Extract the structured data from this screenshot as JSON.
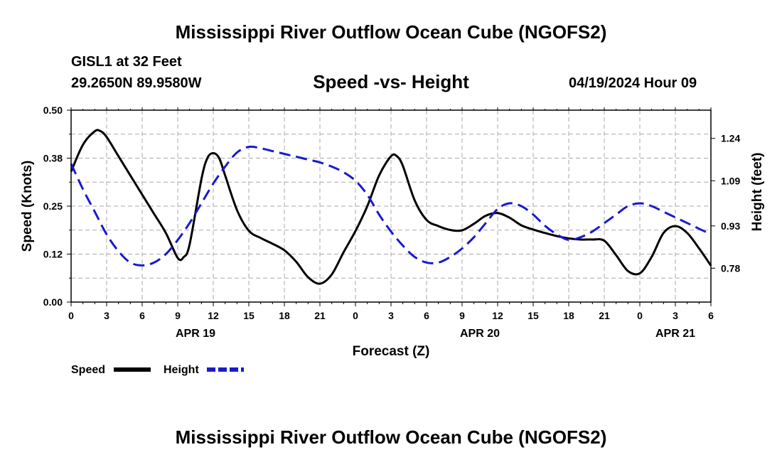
{
  "header": {
    "title": "Mississippi River Outflow Ocean Cube (NGOFS2)",
    "station": "GISL1 at 32 Feet",
    "coords": "29.2650N  89.9580W",
    "subtitle": "Speed -vs- Height",
    "datetime": "04/19/2024 Hour 09"
  },
  "footer": {
    "title": "Mississippi River Outflow Ocean Cube (NGOFS2)"
  },
  "colors": {
    "speed": "#000000",
    "height": "#1a1acc",
    "grid": "#aaaaaa"
  },
  "chart_data": {
    "type": "line",
    "xlabel": "Forecast (Z)",
    "ylabel_left": "Speed (Knots)",
    "ylabel_right": "Height (feet)",
    "x_range_hours": [
      0,
      54
    ],
    "x_ticks": [
      {
        "h": 0,
        "label": "0"
      },
      {
        "h": 3,
        "label": "3"
      },
      {
        "h": 6,
        "label": "6"
      },
      {
        "h": 9,
        "label": "9"
      },
      {
        "h": 12,
        "label": "12"
      },
      {
        "h": 15,
        "label": "15"
      },
      {
        "h": 18,
        "label": "18"
      },
      {
        "h": 21,
        "label": "21"
      },
      {
        "h": 24,
        "label": "0"
      },
      {
        "h": 27,
        "label": "3"
      },
      {
        "h": 30,
        "label": "6"
      },
      {
        "h": 33,
        "label": "9"
      },
      {
        "h": 36,
        "label": "12"
      },
      {
        "h": 39,
        "label": "15"
      },
      {
        "h": 42,
        "label": "18"
      },
      {
        "h": 45,
        "label": "21"
      },
      {
        "h": 48,
        "label": "0"
      },
      {
        "h": 51,
        "label": "3"
      },
      {
        "h": 54,
        "label": "6"
      }
    ],
    "date_labels": [
      {
        "h": 10.5,
        "label": "APR 19"
      },
      {
        "h": 34.5,
        "label": "APR 20"
      },
      {
        "h": 51,
        "label": "APR 21"
      }
    ],
    "ylim_left": [
      0,
      0.5
    ],
    "yticks_left": [
      "0.00",
      "0.12",
      "0.25",
      "0.38",
      "0.50"
    ],
    "ylim_right": [
      0.66,
      1.34
    ],
    "yticks_right": [
      {
        "v": 0.78,
        "label": "0.78"
      },
      {
        "v": 0.93,
        "label": "0.93"
      },
      {
        "v": 1.09,
        "label": "1.09"
      },
      {
        "v": 1.24,
        "label": "1.24"
      }
    ],
    "series": [
      {
        "name": "Speed",
        "axis": "left",
        "style": "solid",
        "x": [
          0,
          1,
          2,
          2.5,
          3,
          4,
          5,
          6,
          7,
          8,
          9,
          9.5,
          10,
          11,
          11.5,
          12,
          12.5,
          13,
          14,
          15,
          16,
          17,
          18,
          19,
          20,
          21,
          22,
          23,
          24,
          25,
          26,
          27,
          27.5,
          28,
          29,
          30,
          31,
          32,
          33,
          34,
          35,
          36,
          37,
          38,
          39,
          40,
          41,
          42,
          43,
          44,
          45,
          46,
          47,
          48,
          49,
          50,
          51,
          52,
          53,
          54
        ],
        "y": [
          0.34,
          0.41,
          0.445,
          0.445,
          0.43,
          0.38,
          0.33,
          0.28,
          0.23,
          0.18,
          0.115,
          0.117,
          0.15,
          0.32,
          0.375,
          0.388,
          0.375,
          0.33,
          0.24,
          0.186,
          0.167,
          0.152,
          0.135,
          0.105,
          0.065,
          0.048,
          0.072,
          0.13,
          0.185,
          0.25,
          0.33,
          0.38,
          0.38,
          0.355,
          0.265,
          0.214,
          0.198,
          0.188,
          0.187,
          0.204,
          0.225,
          0.232,
          0.22,
          0.2,
          0.189,
          0.18,
          0.172,
          0.166,
          0.163,
          0.163,
          0.16,
          0.122,
          0.081,
          0.075,
          0.118,
          0.18,
          0.198,
          0.18,
          0.14,
          0.095
        ]
      },
      {
        "name": "Height",
        "axis": "right",
        "style": "dashed",
        "x": [
          0,
          1,
          2,
          3,
          4,
          5,
          6,
          7,
          8,
          9,
          10,
          11,
          12,
          13,
          14,
          15,
          16,
          17,
          18,
          19,
          20,
          21,
          22,
          23,
          24,
          25,
          26,
          27,
          28,
          29,
          30,
          31,
          32,
          33,
          34,
          35,
          36,
          37,
          38,
          39,
          40,
          41,
          42,
          43,
          44,
          45,
          46,
          47,
          48,
          49,
          50,
          51,
          52,
          53,
          54
        ],
        "y": [
          1.15,
          1.06,
          0.98,
          0.9,
          0.84,
          0.8,
          0.79,
          0.8,
          0.83,
          0.88,
          0.94,
          1.01,
          1.08,
          1.14,
          1.19,
          1.21,
          1.205,
          1.195,
          1.185,
          1.175,
          1.165,
          1.155,
          1.14,
          1.12,
          1.09,
          1.04,
          0.97,
          0.91,
          0.86,
          0.82,
          0.8,
          0.8,
          0.82,
          0.85,
          0.89,
          0.94,
          0.99,
          1.01,
          1.0,
          0.97,
          0.93,
          0.9,
          0.88,
          0.89,
          0.91,
          0.94,
          0.97,
          1.0,
          1.01,
          1.0,
          0.98,
          0.96,
          0.94,
          0.92,
          0.9
        ]
      }
    ],
    "legend": [
      {
        "name": "Speed",
        "style": "solid"
      },
      {
        "name": "Height",
        "style": "dashed"
      }
    ]
  }
}
